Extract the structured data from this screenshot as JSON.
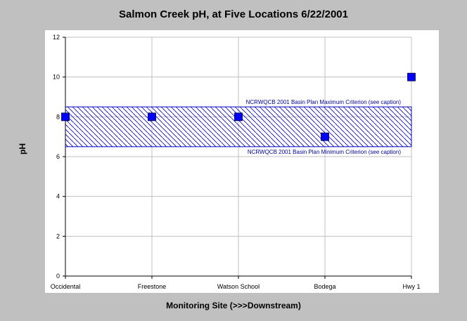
{
  "chart_data": {
    "type": "scatter",
    "title": "Salmon Creek pH, at Five Locations 6/22/2001",
    "xlabel": "Monitoring Site (>>>Downstream)",
    "ylabel": "pH",
    "categories": [
      "Occidental",
      "Freestone",
      "Watson School",
      "Bodega",
      "Hwy 1"
    ],
    "series": [
      {
        "values": [
          8,
          8,
          8,
          7,
          10
        ]
      }
    ],
    "ylim": [
      0,
      12
    ],
    "yticks": [
      0,
      2,
      4,
      6,
      8,
      10,
      12
    ],
    "grid": true,
    "criterion_band": {
      "max": 8.5,
      "min": 6.5,
      "max_label": "NCRWQCB 2001 Basin Plan Maximum Criterion (see caption)",
      "min_label": "NCRWQCB 2001 Basin Plan Minimum Criterion (see caption)"
    },
    "colors": {
      "marker": "#0000ff",
      "band": "#0000c0",
      "grid": "#c0c0c0",
      "panel_bg": "#ffffff",
      "page_bg": "#c0c0c0"
    }
  }
}
